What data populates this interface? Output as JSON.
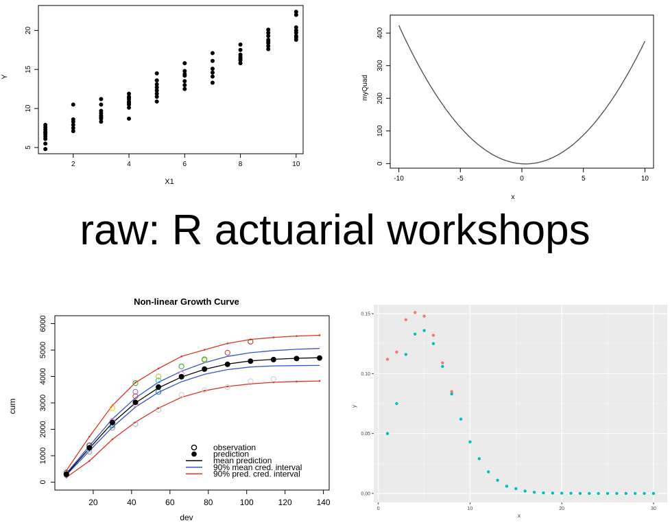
{
  "page_title": "raw: R actuarial workshops",
  "chart_data": [
    {
      "type": "scatter",
      "xlabel": "X1",
      "ylabel": "Y",
      "xlim": [
        0.75,
        10.25
      ],
      "ylim": [
        4.2,
        23.2
      ],
      "xticks": [
        "2",
        "4",
        "6",
        "8",
        "10"
      ],
      "yticks": [
        "5",
        "10",
        "15",
        "20"
      ],
      "x": [
        1,
        1,
        1,
        1,
        1,
        1,
        1,
        1,
        1,
        1,
        2,
        2,
        2,
        2,
        2,
        2,
        3,
        3,
        3,
        3,
        3,
        3,
        3,
        3,
        4,
        4,
        4,
        4,
        4,
        4,
        4,
        4,
        4,
        5,
        5,
        5,
        5,
        5,
        5,
        5,
        5,
        6,
        6,
        6,
        6,
        6,
        6,
        6,
        7,
        7,
        7,
        7,
        7,
        7,
        8,
        8,
        8,
        8,
        8,
        8,
        8,
        9,
        9,
        9,
        9,
        9,
        9,
        9,
        9,
        10,
        10,
        10,
        10,
        10,
        10,
        10,
        10
      ],
      "y": [
        4.8,
        5.5,
        6.1,
        6.4,
        6.7,
        7.0,
        7.3,
        7.6,
        7.9,
        6.9,
        7.1,
        7.5,
        7.9,
        8.3,
        8.6,
        10.5,
        8.3,
        8.7,
        9.1,
        9.4,
        9.7,
        10.5,
        11.2,
        8.9,
        8.7,
        10.1,
        10.5,
        10.9,
        11.2,
        11.5,
        11.9,
        10.7,
        11.4,
        10.9,
        11.5,
        11.9,
        12.3,
        12.7,
        13.1,
        13.6,
        14.5,
        12.5,
        13.0,
        13.5,
        14.2,
        14.4,
        14.8,
        15.8,
        13.3,
        14.1,
        14.6,
        15.1,
        16.1,
        17.1,
        15.8,
        16.2,
        16.6,
        16.9,
        17.5,
        18.2,
        16.4,
        17.6,
        18.0,
        18.4,
        18.8,
        19.3,
        19.7,
        20.1,
        18.6,
        18.8,
        19.3,
        19.7,
        20.4,
        22.0,
        22.4,
        19.1,
        20.0
      ]
    },
    {
      "type": "line",
      "xlabel": "x",
      "ylabel": "myQuad",
      "xlim": [
        -10.7,
        10.7
      ],
      "ylim": [
        -14,
        455
      ],
      "xticks": [
        "-10",
        "-5",
        "0",
        "5",
        "10"
      ],
      "yticks": [
        "0",
        "100",
        "200",
        "300",
        "400"
      ],
      "function": "4*(x-0.3)^2 - 1",
      "x_range": [
        -10,
        10
      ]
    },
    {
      "type": "line",
      "title": "Non-linear Growth Curve",
      "xlabel": "dev",
      "ylabel": "cum",
      "xlim": [
        0,
        143
      ],
      "ylim": [
        -300,
        6300
      ],
      "xticks": [
        "20",
        "40",
        "60",
        "80",
        "100",
        "120",
        "140"
      ],
      "yticks": [
        "0",
        "1000",
        "2000",
        "3000",
        "4000",
        "5000",
        "6000"
      ],
      "legend_position": "bottom-right",
      "legend": [
        "observation",
        "prediction",
        "mean prediction",
        "90% mean cred. interval",
        "90% pred. cred. interval"
      ],
      "dev": [
        6,
        18,
        30,
        42,
        54,
        66,
        78,
        90,
        102,
        114,
        126,
        138
      ],
      "mean_prediction": [
        300,
        1280,
        2240,
        3000,
        3570,
        3980,
        4270,
        4470,
        4590,
        4650,
        4690,
        4710
      ],
      "mean_cred_lower": [
        270,
        1180,
        2080,
        2840,
        3400,
        3800,
        4080,
        4260,
        4360,
        4400,
        4410,
        4420
      ],
      "mean_cred_upper": [
        330,
        1370,
        2390,
        3190,
        3780,
        4200,
        4520,
        4760,
        4900,
        4980,
        5030,
        5060
      ],
      "pred_cred_lower": [
        180,
        800,
        1620,
        2270,
        2800,
        3210,
        3460,
        3620,
        3720,
        3780,
        3810,
        3830
      ],
      "pred_cred_upper": [
        440,
        1720,
        2900,
        3770,
        4300,
        4760,
        5010,
        5250,
        5400,
        5480,
        5530,
        5560
      ],
      "prediction_points": [
        300,
        1300,
        2260,
        3020,
        3600,
        3990,
        4280,
        4460,
        4580,
        4640,
        4680,
        4700
      ],
      "observations": [
        {
          "x": 6,
          "y": 280,
          "color": "#2166ac"
        },
        {
          "x": 6,
          "y": 360,
          "color": "#555555"
        },
        {
          "x": 18,
          "y": 1150,
          "color": "#999999"
        },
        {
          "x": 18,
          "y": 1230,
          "color": "#9ecae1"
        },
        {
          "x": 18,
          "y": 1300,
          "color": "#cc4444"
        },
        {
          "x": 18,
          "y": 1390,
          "color": "#333333"
        },
        {
          "x": 30,
          "y": 2150,
          "color": "#2171b5"
        },
        {
          "x": 30,
          "y": 2320,
          "color": "#e377c2"
        },
        {
          "x": 30,
          "y": 2800,
          "color": "#f0d000"
        },
        {
          "x": 30,
          "y": 2060,
          "color": "#888888"
        },
        {
          "x": 42,
          "y": 2200,
          "color": "#aaaaaa"
        },
        {
          "x": 42,
          "y": 2950,
          "color": "#e377c2"
        },
        {
          "x": 42,
          "y": 3250,
          "color": "#cc3333"
        },
        {
          "x": 42,
          "y": 3420,
          "color": "#9467bd"
        },
        {
          "x": 42,
          "y": 3750,
          "color": "#2ca02c"
        },
        {
          "x": 54,
          "y": 2740,
          "color": "#bbbbbb"
        },
        {
          "x": 54,
          "y": 3420,
          "color": "#2171b5"
        },
        {
          "x": 54,
          "y": 3850,
          "color": "#17becf"
        },
        {
          "x": 54,
          "y": 4000,
          "color": "#bcbd22"
        },
        {
          "x": 66,
          "y": 3300,
          "color": "#cccccc"
        },
        {
          "x": 66,
          "y": 4100,
          "color": "#e377c2"
        },
        {
          "x": 66,
          "y": 4380,
          "color": "#2ca02c"
        },
        {
          "x": 78,
          "y": 3480,
          "color": "#cccccc"
        },
        {
          "x": 78,
          "y": 4620,
          "color": "#bcbd22"
        },
        {
          "x": 78,
          "y": 4650,
          "color": "#2ca02c"
        },
        {
          "x": 90,
          "y": 3600,
          "color": "#cccccc"
        },
        {
          "x": 90,
          "y": 4900,
          "color": "#cc3333"
        },
        {
          "x": 102,
          "y": 3820,
          "color": "#cccccc"
        },
        {
          "x": 102,
          "y": 5320,
          "color": "#8c2d04"
        },
        {
          "x": 114,
          "y": 3900,
          "color": "#cccccc"
        }
      ],
      "colors": {
        "mean": "#000000",
        "mean_ci": "#3355cc",
        "pred_ci": "#dd3322"
      }
    },
    {
      "type": "scatter",
      "xlabel": "x",
      "ylabel": "y",
      "xlim": [
        -0.5,
        31.5
      ],
      "ylim": [
        -0.0075,
        0.1575
      ],
      "xticks": [
        "0",
        "10",
        "20",
        "30"
      ],
      "yticks": [
        "0.00",
        "0.05",
        "0.10",
        "0.15"
      ],
      "grid": true,
      "panel_background": "#ebebeb",
      "series": [
        {
          "color": "#f8766d",
          "x": [
            1,
            2,
            3,
            4,
            5,
            6,
            7,
            8
          ],
          "y": [
            0.112,
            0.118,
            0.145,
            0.151,
            0.148,
            0.132,
            0.109,
            0.085
          ]
        },
        {
          "color": "#00bfc4",
          "x": [
            1,
            2,
            3,
            4,
            5,
            6,
            7,
            8,
            9,
            10,
            11,
            12,
            13,
            14,
            15,
            16,
            17,
            18,
            19,
            20,
            21,
            22,
            23,
            24,
            25,
            26,
            27,
            28,
            29,
            30
          ],
          "y": [
            0.05,
            0.075,
            0.116,
            0.133,
            0.136,
            0.125,
            0.106,
            0.083,
            0.062,
            0.043,
            0.029,
            0.018,
            0.011,
            0.006,
            0.004,
            0.002,
            0.001,
            0.0005,
            0.0003,
            0.0002,
            0.0001,
            0,
            0,
            0,
            0,
            0,
            0,
            0,
            0,
            0
          ]
        }
      ]
    }
  ]
}
